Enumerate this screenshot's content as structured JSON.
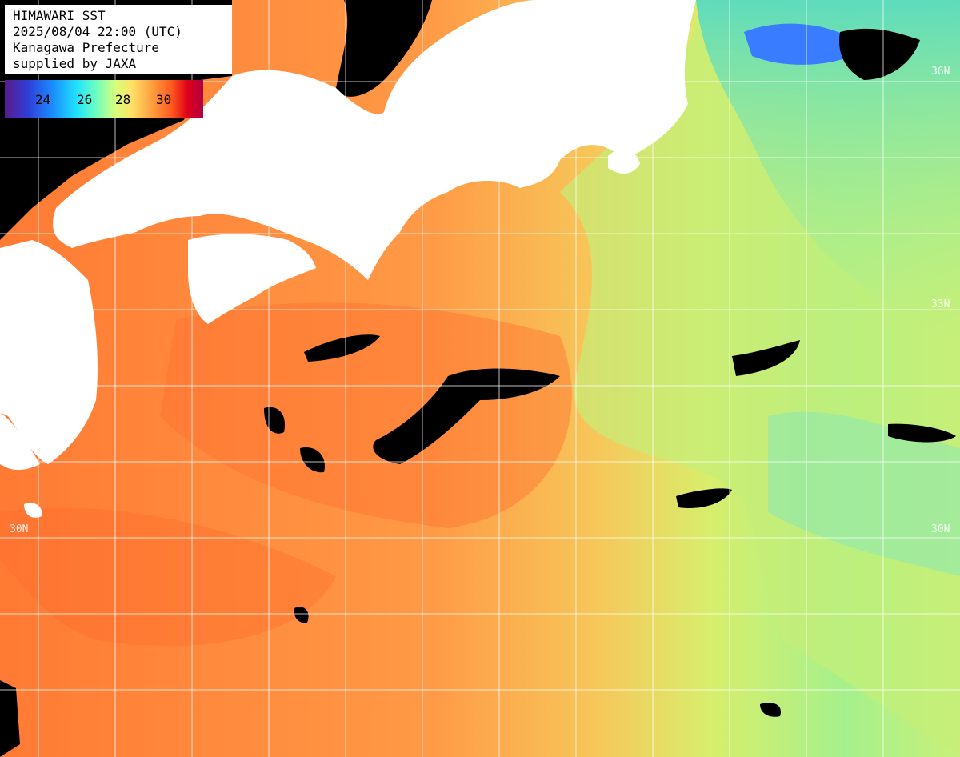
{
  "map": {
    "title_lines": [
      "HIMAWARI SST",
      "2025/08/04 22:00 (UTC)",
      "Kanagawa Prefecture",
      "supplied by JAXA"
    ],
    "legend": {
      "ticks": [
        "24",
        "26",
        "28",
        "30"
      ],
      "gradient_colors": [
        "#5a1a8c",
        "#2f3fd8",
        "#1a8cff",
        "#20e0ff",
        "#6cffc0",
        "#d8ff7a",
        "#ffe066",
        "#ffa040",
        "#ff5a1e",
        "#e0001a",
        "#b00040"
      ]
    },
    "lat_labels": [
      "36N",
      "33N",
      "30N",
      "30N"
    ],
    "colors": {
      "land": "#ffffff",
      "cloud_nodata": "#000000",
      "warm_sea": "#ff8a3c",
      "cool_sea": "#c8f26a",
      "cold_sea": "#7ee8b0",
      "grid": "#ffffff"
    }
  }
}
